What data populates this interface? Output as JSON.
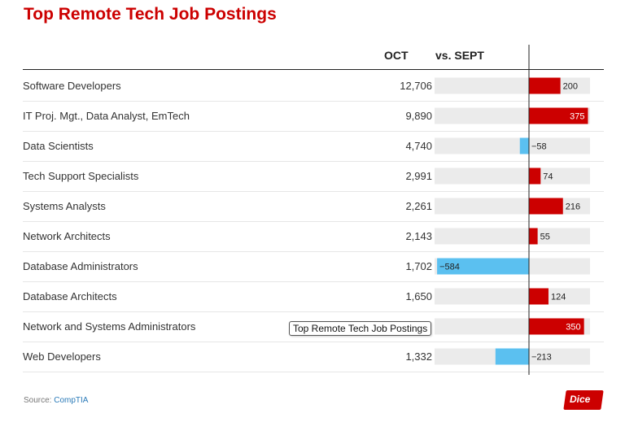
{
  "title": "Top Remote Tech Job Postings",
  "columns": {
    "oct": "OCT",
    "vs": "vs. SEPT"
  },
  "source_label": "Source:",
  "source_name": "CompTIA",
  "logo": "Dice",
  "tooltip": "Top Remote Tech Job Postings",
  "colors": {
    "positive": "#cc0000",
    "negative": "#5bc0f0",
    "track": "#ebebeb",
    "title": "#cc0000"
  },
  "chart_data": {
    "type": "bar",
    "title": "Top Remote Tech Job Postings",
    "categories": [
      "Software Developers",
      "IT Proj. Mgt., Data Analyst, EmTech",
      "Data Scientists",
      "Tech Support Specialists",
      "Systems Analysts",
      "Network Architects",
      "Database Administrators",
      "Database Architects",
      "Network and Systems Administrators",
      "Web Developers"
    ],
    "oct": [
      "12,706",
      "9,890",
      "4,740",
      "2,991",
      "2,261",
      "2,143",
      "1,702",
      "1,650",
      "",
      "1,332"
    ],
    "change": [
      200,
      375,
      -58,
      74,
      216,
      55,
      -584,
      124,
      350,
      -213
    ],
    "change_labels": [
      "200",
      "375",
      "−58",
      "74",
      "216",
      "55",
      "−584",
      "124",
      "350",
      "−213"
    ],
    "xlim": [
      -600,
      400
    ]
  }
}
